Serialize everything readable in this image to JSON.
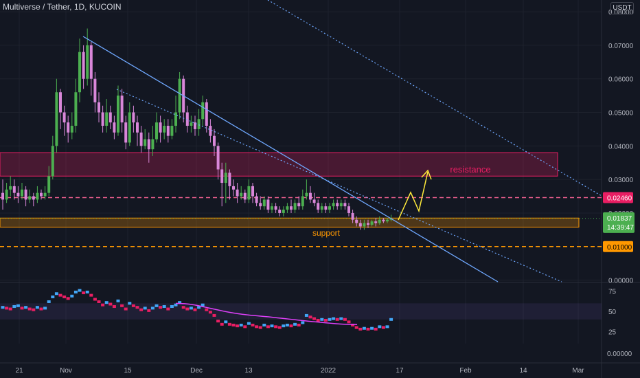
{
  "header": {
    "title": "Multiverse / Tether, 1D, KUCOIN",
    "currency": "USDT"
  },
  "colors": {
    "background": "#131722",
    "up": "#4caf50",
    "down": "#d987d9",
    "trendline": "#6fa8ff",
    "resistance_zone": "#e91e63",
    "support_zone": "#ff9800",
    "arrow": "#ffeb3b",
    "rsi_ma": "#e040fb",
    "rsi_up": "#42a5f5",
    "rsi_down": "#e91e63"
  },
  "annotations": {
    "resistance_label": "resistance",
    "support_label": "support"
  },
  "chart_data": {
    "type": "candlestick",
    "title": "Multiverse / Tether, 1D, KUCOIN",
    "y_axis": {
      "ticks": [
        "0.08000",
        "0.07000",
        "0.06000",
        "0.05000",
        "0.04000",
        "0.03000",
        "0.02000",
        "0.00000"
      ],
      "range": [
        -0.0005,
        0.0835
      ]
    },
    "x_axis": {
      "ticks": [
        "21",
        "Nov",
        "15",
        "Dec",
        "13",
        "2022",
        "17",
        "Feb",
        "14",
        "Mar"
      ]
    },
    "price_labels": {
      "level_red": "0.02460",
      "current": "0.01837",
      "countdown": "14:39:47",
      "level_orange": "0.01000"
    },
    "horizontal_levels": [
      0.0246,
      0.01
    ],
    "zones": {
      "resistance": [
        0.031,
        0.038
      ],
      "support": [
        0.0158,
        0.0185
      ]
    },
    "candles": [
      [
        0.026,
        0.024,
        0.03,
        0.021
      ],
      [
        0.024,
        0.027,
        0.029,
        0.023
      ],
      [
        0.027,
        0.028,
        0.031,
        0.025
      ],
      [
        0.028,
        0.026,
        0.03,
        0.024
      ],
      [
        0.026,
        0.025,
        0.028,
        0.023
      ],
      [
        0.025,
        0.027,
        0.029,
        0.024
      ],
      [
        0.027,
        0.024,
        0.028,
        0.022
      ],
      [
        0.024,
        0.025,
        0.027,
        0.023
      ],
      [
        0.025,
        0.024,
        0.026,
        0.022
      ],
      [
        0.024,
        0.026,
        0.028,
        0.023
      ],
      [
        0.026,
        0.025,
        0.027,
        0.024
      ],
      [
        0.025,
        0.026,
        0.028,
        0.024
      ],
      [
        0.026,
        0.031,
        0.034,
        0.025
      ],
      [
        0.031,
        0.04,
        0.043,
        0.03
      ],
      [
        0.04,
        0.056,
        0.06,
        0.038
      ],
      [
        0.056,
        0.05,
        0.057,
        0.045
      ],
      [
        0.05,
        0.047,
        0.052,
        0.043
      ],
      [
        0.047,
        0.044,
        0.049,
        0.041
      ],
      [
        0.044,
        0.046,
        0.05,
        0.042
      ],
      [
        0.046,
        0.056,
        0.06,
        0.044
      ],
      [
        0.056,
        0.068,
        0.072,
        0.053
      ],
      [
        0.068,
        0.06,
        0.07,
        0.057
      ],
      [
        0.06,
        0.07,
        0.075,
        0.058
      ],
      [
        0.07,
        0.06,
        0.071,
        0.055
      ],
      [
        0.06,
        0.053,
        0.062,
        0.05
      ],
      [
        0.053,
        0.05,
        0.056,
        0.047
      ],
      [
        0.05,
        0.046,
        0.052,
        0.044
      ],
      [
        0.046,
        0.05,
        0.054,
        0.044
      ],
      [
        0.05,
        0.047,
        0.052,
        0.045
      ],
      [
        0.047,
        0.044,
        0.049,
        0.042
      ],
      [
        0.044,
        0.055,
        0.058,
        0.043
      ],
      [
        0.055,
        0.047,
        0.057,
        0.044
      ],
      [
        0.047,
        0.041,
        0.049,
        0.039
      ],
      [
        0.041,
        0.05,
        0.053,
        0.04
      ],
      [
        0.05,
        0.047,
        0.052,
        0.044
      ],
      [
        0.047,
        0.044,
        0.049,
        0.04
      ],
      [
        0.044,
        0.04,
        0.046,
        0.038
      ],
      [
        0.04,
        0.042,
        0.045,
        0.039
      ],
      [
        0.042,
        0.039,
        0.044,
        0.035
      ],
      [
        0.039,
        0.042,
        0.046,
        0.037
      ],
      [
        0.042,
        0.047,
        0.05,
        0.041
      ],
      [
        0.047,
        0.044,
        0.049,
        0.041
      ],
      [
        0.044,
        0.046,
        0.048,
        0.042
      ],
      [
        0.046,
        0.043,
        0.048,
        0.041
      ],
      [
        0.043,
        0.046,
        0.048,
        0.042
      ],
      [
        0.046,
        0.05,
        0.055,
        0.044
      ],
      [
        0.05,
        0.06,
        0.062,
        0.048
      ],
      [
        0.06,
        0.05,
        0.061,
        0.047
      ],
      [
        0.05,
        0.046,
        0.052,
        0.044
      ],
      [
        0.046,
        0.047,
        0.049,
        0.044
      ],
      [
        0.047,
        0.045,
        0.049,
        0.043
      ],
      [
        0.045,
        0.048,
        0.051,
        0.043
      ],
      [
        0.048,
        0.053,
        0.055,
        0.046
      ],
      [
        0.053,
        0.046,
        0.054,
        0.044
      ],
      [
        0.046,
        0.043,
        0.048,
        0.041
      ],
      [
        0.043,
        0.04,
        0.045,
        0.037
      ],
      [
        0.04,
        0.033,
        0.041,
        0.03
      ],
      [
        0.033,
        0.029,
        0.035,
        0.022
      ],
      [
        0.029,
        0.032,
        0.035,
        0.023
      ],
      [
        0.032,
        0.028,
        0.033,
        0.024
      ],
      [
        0.028,
        0.027,
        0.03,
        0.025
      ],
      [
        0.027,
        0.025,
        0.029,
        0.023
      ],
      [
        0.025,
        0.026,
        0.028,
        0.024
      ],
      [
        0.026,
        0.024,
        0.027,
        0.023
      ],
      [
        0.024,
        0.028,
        0.03,
        0.023
      ],
      [
        0.028,
        0.025,
        0.029,
        0.023
      ],
      [
        0.025,
        0.023,
        0.026,
        0.022
      ],
      [
        0.023,
        0.022,
        0.025,
        0.021
      ],
      [
        0.022,
        0.024,
        0.025,
        0.021
      ],
      [
        0.024,
        0.021,
        0.025,
        0.02
      ],
      [
        0.021,
        0.022,
        0.023,
        0.02
      ],
      [
        0.022,
        0.021,
        0.023,
        0.02
      ],
      [
        0.021,
        0.02,
        0.022,
        0.019
      ],
      [
        0.02,
        0.021,
        0.022,
        0.019
      ],
      [
        0.021,
        0.022,
        0.023,
        0.02
      ],
      [
        0.022,
        0.021,
        0.024,
        0.02
      ],
      [
        0.021,
        0.023,
        0.024,
        0.02
      ],
      [
        0.023,
        0.022,
        0.025,
        0.021
      ],
      [
        0.022,
        0.025,
        0.027,
        0.021
      ],
      [
        0.025,
        0.026,
        0.03,
        0.024
      ],
      [
        0.026,
        0.024,
        0.028,
        0.023
      ],
      [
        0.024,
        0.023,
        0.026,
        0.022
      ],
      [
        0.023,
        0.021,
        0.024,
        0.02
      ],
      [
        0.021,
        0.022,
        0.023,
        0.02
      ],
      [
        0.022,
        0.021,
        0.023,
        0.02
      ],
      [
        0.021,
        0.022,
        0.023,
        0.02
      ],
      [
        0.022,
        0.023,
        0.024,
        0.021
      ],
      [
        0.023,
        0.022,
        0.024,
        0.021
      ],
      [
        0.022,
        0.023,
        0.024,
        0.021
      ],
      [
        0.023,
        0.022,
        0.024,
        0.021
      ],
      [
        0.022,
        0.02,
        0.023,
        0.019
      ],
      [
        0.02,
        0.018,
        0.021,
        0.017
      ],
      [
        0.018,
        0.017,
        0.019,
        0.016
      ],
      [
        0.017,
        0.016,
        0.018,
        0.015
      ],
      [
        0.016,
        0.017,
        0.018,
        0.015
      ],
      [
        0.017,
        0.0165,
        0.018,
        0.0155
      ],
      [
        0.0165,
        0.0175,
        0.018,
        0.016
      ],
      [
        0.0175,
        0.017,
        0.0185,
        0.016
      ],
      [
        0.017,
        0.018,
        0.019,
        0.0165
      ],
      [
        0.018,
        0.0175,
        0.0185,
        0.017
      ],
      [
        0.0175,
        0.018,
        0.0185,
        0.017
      ],
      [
        0.018,
        0.01837,
        0.0195,
        0.0175
      ]
    ],
    "rsi": {
      "ticks": [
        "75",
        "50",
        "25"
      ],
      "range": [
        10,
        85
      ],
      "band": [
        40,
        60
      ],
      "values": [
        55,
        54,
        53,
        56,
        57,
        54,
        55,
        53,
        52,
        55,
        53,
        54,
        62,
        68,
        72,
        70,
        68,
        66,
        69,
        74,
        76,
        73,
        74,
        70,
        65,
        62,
        58,
        61,
        59,
        56,
        63,
        57,
        53,
        60,
        57,
        55,
        52,
        54,
        51,
        54,
        57,
        55,
        56,
        53,
        56,
        58,
        61,
        55,
        53,
        54,
        52,
        55,
        58,
        52,
        49,
        45,
        38,
        34,
        37,
        34,
        33,
        32,
        33,
        31,
        35,
        33,
        31,
        30,
        33,
        31,
        32,
        31,
        30,
        32,
        33,
        32,
        34,
        33,
        36,
        45,
        43,
        41,
        39,
        40,
        39,
        40,
        41,
        40,
        41,
        40,
        37,
        33,
        30,
        28,
        29,
        28,
        29,
        28,
        31,
        30,
        31,
        40
      ],
      "ma_start_index": 60,
      "ma": [
        60,
        59.8,
        59.5,
        59,
        58.2,
        57.2,
        56,
        54.8,
        53.6,
        52.4,
        51.2,
        50,
        49,
        48,
        47.2,
        46.4,
        45.8,
        45.2,
        44.7,
        44.2,
        43.7,
        43.2,
        42.6,
        42,
        41.4,
        40.8,
        40.2,
        39.6,
        39,
        38.4,
        37.8,
        37.3,
        36.8,
        36.3,
        35.8,
        35.3,
        34.8,
        34.4,
        34.1,
        33.9,
        33.8,
        33.7
      ]
    }
  }
}
